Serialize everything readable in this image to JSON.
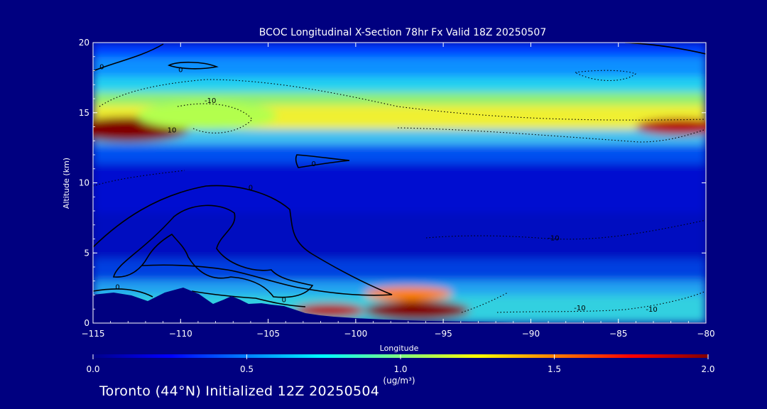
{
  "chart_data": {
    "type": "heatmap",
    "title": "BCOC Longitudinal X-Section 78hr  Fx Valid 18Z 20250507",
    "xlabel": "Longitude",
    "ylabel": "Altitude (km)",
    "xlim": [
      -115,
      -80
    ],
    "ylim": [
      0,
      20
    ],
    "xticks": [
      -115,
      -110,
      -105,
      -100,
      -95,
      -90,
      -85,
      -80
    ],
    "yticks": [
      0,
      5,
      10,
      15,
      20
    ],
    "xtick_labels": [
      "−115",
      "−110",
      "−105",
      "−100",
      "−95",
      "−90",
      "−85",
      "−80"
    ],
    "ytick_labels": [
      "0",
      "5",
      "10",
      "15",
      "20"
    ],
    "colorbar": {
      "min": 0.0,
      "max": 2.0,
      "ticks": [
        "0.0",
        "0.5",
        "1.0",
        "1.5",
        "2.0"
      ],
      "units": "(ug/m³)",
      "colormap": [
        "#00008b",
        "#0000ff",
        "#0080ff",
        "#00ffff",
        "#80ff80",
        "#ffff00",
        "#ff8000",
        "#ff0000",
        "#800000"
      ]
    },
    "concentration_features": [
      {
        "lon": -113.0,
        "alt": 13.8,
        "value": 2.0,
        "lon_radius": 3.5,
        "alt_radius": 0.9
      },
      {
        "lon": -108.5,
        "alt": 14.8,
        "value": 1.1,
        "lon_radius": 4.0,
        "alt_radius": 1.0
      },
      {
        "lon": -81.5,
        "alt": 14.0,
        "value": 1.9,
        "lon_radius": 2.5,
        "alt_radius": 0.6
      },
      {
        "lon": -96.5,
        "alt": 0.9,
        "value": 2.0,
        "lon_radius": 3.0,
        "alt_radius": 0.7
      },
      {
        "lon": -101.5,
        "alt": 0.9,
        "value": 1.9,
        "lon_radius": 2.0,
        "alt_radius": 0.5
      },
      {
        "lon": -97.0,
        "alt": 2.1,
        "value": 1.5,
        "lon_radius": 2.5,
        "alt_radius": 0.5
      }
    ],
    "contour_labels": [
      {
        "text": "0",
        "lon": -114.5,
        "alt": 18.1
      },
      {
        "text": "0",
        "lon": -110.0,
        "alt": 17.9
      },
      {
        "text": "-10",
        "lon": -108.3,
        "alt": 15.7
      },
      {
        "text": "10",
        "lon": -110.5,
        "alt": 13.6
      },
      {
        "text": "0",
        "lon": -102.4,
        "alt": 11.2
      },
      {
        "text": "0",
        "lon": -106.0,
        "alt": 9.5
      },
      {
        "text": "0",
        "lon": -113.6,
        "alt": 2.4
      },
      {
        "text": "0",
        "lon": -104.1,
        "alt": 1.5
      },
      {
        "text": "-10",
        "lon": -88.7,
        "alt": 5.9
      },
      {
        "text": "-10",
        "lon": -87.2,
        "alt": 0.9
      },
      {
        "text": "-10",
        "lon": -83.1,
        "alt": 0.8
      },
      {
        "text": "0",
        "lon": -83.8,
        "alt": 19.9
      }
    ]
  },
  "footer": {
    "text": "Toronto (44°N) Initialized 12Z 20250504"
  }
}
